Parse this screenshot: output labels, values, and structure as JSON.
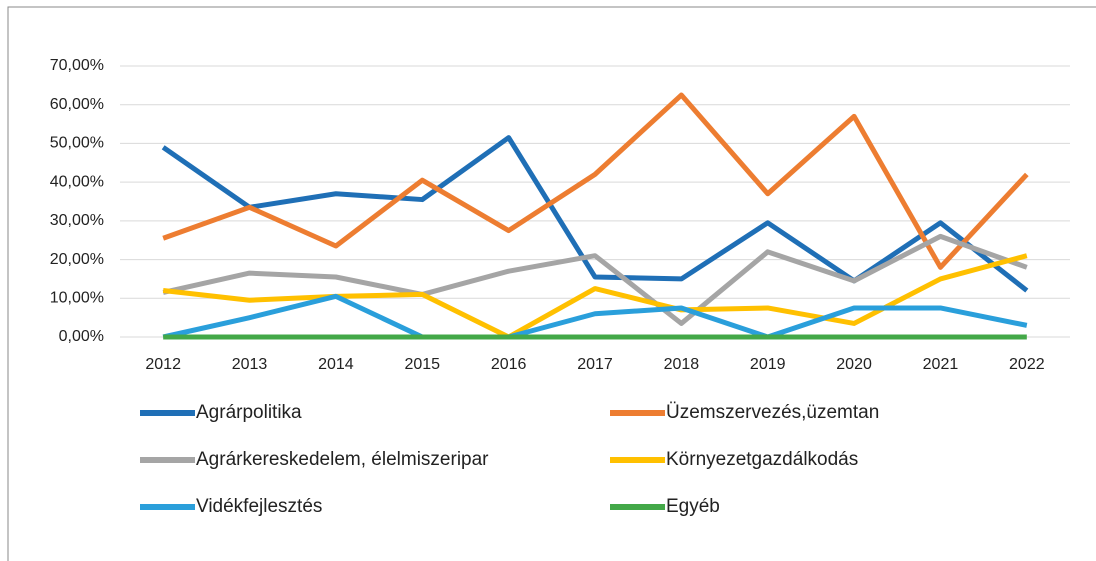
{
  "chart_data": {
    "type": "line",
    "categories": [
      "2012",
      "2013",
      "2014",
      "2015",
      "2016",
      "2017",
      "2018",
      "2019",
      "2020",
      "2021",
      "2022"
    ],
    "series": [
      {
        "name": "Agrárpolitika",
        "color": "#1f6fb6",
        "values": [
          49,
          33.5,
          37,
          35.5,
          51.5,
          15.5,
          15,
          29.5,
          14.5,
          29.5,
          12
        ]
      },
      {
        "name": "Üzemszervezés,üzemtan",
        "color": "#ed7d31",
        "values": [
          25.5,
          33.5,
          23.5,
          40.5,
          27.5,
          42,
          62.5,
          37,
          57,
          18,
          42
        ]
      },
      {
        "name": "Agrárkereskedelem, élelmiszeripar",
        "color": "#a5a5a5",
        "values": [
          11.5,
          16.5,
          15.5,
          11,
          17,
          21,
          3.5,
          22,
          14.5,
          26,
          18
        ]
      },
      {
        "name": "Környezetgazdálkodás",
        "color": "#ffc000",
        "values": [
          12,
          9.5,
          10.5,
          11,
          0,
          12.5,
          7,
          7.5,
          3.5,
          15,
          21
        ]
      },
      {
        "name": "Vidékfejlesztés",
        "color": "#2a9fdb",
        "values": [
          0,
          5,
          10.5,
          0,
          0,
          6,
          7.5,
          0,
          7.5,
          7.5,
          3
        ]
      },
      {
        "name": "Egyéb",
        "color": "#43a848",
        "values": [
          0,
          0,
          0,
          0,
          0,
          0,
          0,
          0,
          0,
          0,
          0
        ]
      }
    ],
    "ylim": [
      0,
      70
    ],
    "yticks": [
      {
        "value": 0,
        "label": "0,00%"
      },
      {
        "value": 10,
        "label": "10,00%"
      },
      {
        "value": 20,
        "label": "20,00%"
      },
      {
        "value": 30,
        "label": "30,00%"
      },
      {
        "value": 40,
        "label": "40,00%"
      },
      {
        "value": 50,
        "label": "50,00%"
      },
      {
        "value": 60,
        "label": "60,00%"
      },
      {
        "value": 70,
        "label": "70,00%"
      }
    ],
    "grid": true
  }
}
